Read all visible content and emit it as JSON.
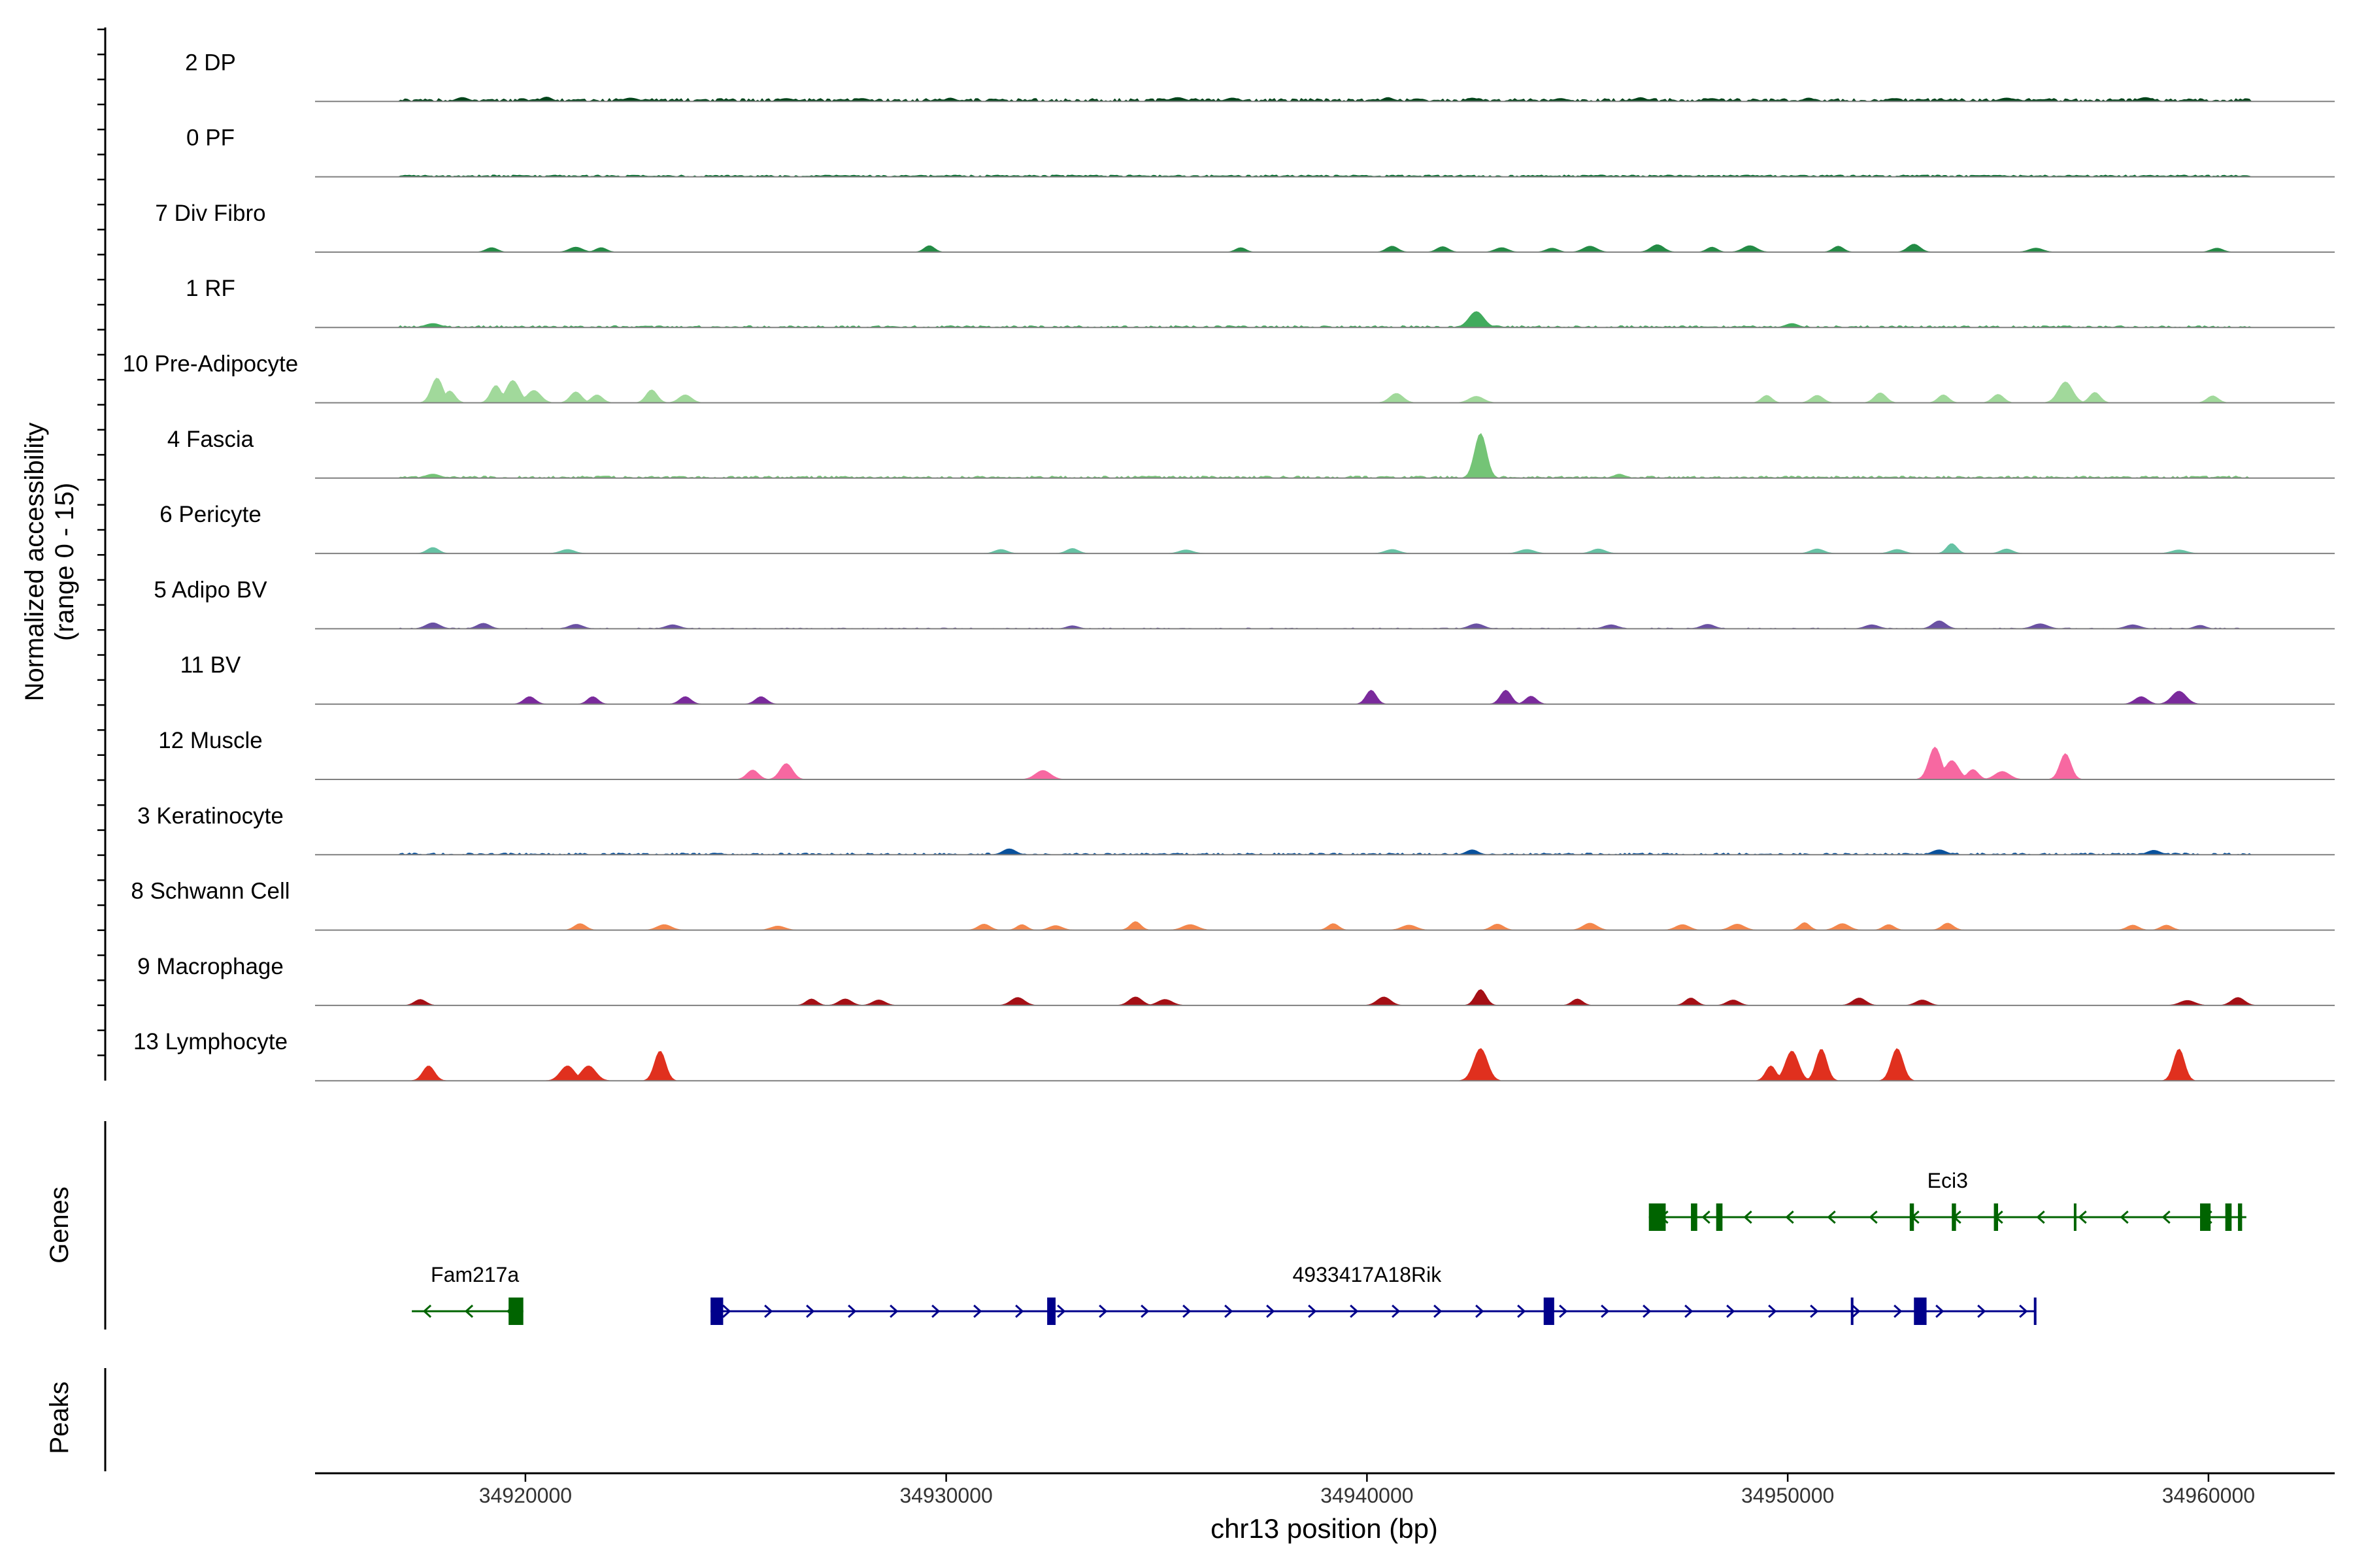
{
  "chart_data": {
    "type": "area",
    "title": "",
    "ylabel": "Normalized accessibility (range 0 - 15)",
    "ylabel_lines": [
      "Normalized accessibility",
      "(range 0 - 15)"
    ],
    "ylim": [
      0,
      15
    ],
    "xlabel": "chr13 position (bp)",
    "xlim": [
      34915000,
      34963000
    ],
    "xticks": [
      34920000,
      34930000,
      34940000,
      34950000,
      34960000
    ],
    "xtick_labels": [
      "34920000",
      "34930000",
      "34940000",
      "34950000",
      "34960000"
    ],
    "colors": {
      "axis": "#000000",
      "baseline": "#808080",
      "gene_minus": "#006400",
      "gene_plus": "#00008b"
    },
    "series": [
      {
        "name": "2 DP",
        "color": "#00441b",
        "bg": 0.5,
        "bgDensity": 0.75,
        "seed": 11,
        "peaks": [
          [
            34918500,
            0.8
          ],
          [
            34920500,
            0.9
          ],
          [
            34922500,
            0.7
          ],
          [
            34926200,
            0.6
          ],
          [
            34928000,
            0.6
          ],
          [
            34930100,
            0.7
          ],
          [
            34935500,
            0.8
          ],
          [
            34936800,
            0.7
          ],
          [
            34940500,
            0.8
          ],
          [
            34942500,
            0.7
          ],
          [
            34944600,
            0.6
          ],
          [
            34946500,
            0.8
          ],
          [
            34948200,
            0.6
          ],
          [
            34950500,
            0.7
          ],
          [
            34952500,
            0.6
          ],
          [
            34955200,
            0.7
          ],
          [
            34958500,
            0.8
          ]
        ]
      },
      {
        "name": "0 PF",
        "color": "#006d2c",
        "bg": 0.3,
        "bgDensity": 0.85,
        "seed": 23,
        "peaks": []
      },
      {
        "name": "7 Div Fibro",
        "color": "#238b45",
        "bg": 0,
        "bgDensity": 0,
        "seed": 37,
        "peaks": [
          [
            34919200,
            0.9
          ],
          [
            34921200,
            1.0
          ],
          [
            34921800,
            0.9
          ],
          [
            34929600,
            1.3
          ],
          [
            34937000,
            0.9
          ],
          [
            34940600,
            1.2
          ],
          [
            34941800,
            1.1
          ],
          [
            34943200,
            0.9
          ],
          [
            34944400,
            0.8
          ],
          [
            34945300,
            1.2
          ],
          [
            34946900,
            1.5
          ],
          [
            34948200,
            1.0
          ],
          [
            34949100,
            1.3
          ],
          [
            34951200,
            1.2
          ],
          [
            34953000,
            1.6
          ],
          [
            34955900,
            0.8
          ],
          [
            34960200,
            0.8
          ]
        ]
      },
      {
        "name": "1 RF",
        "color": "#41ab5d",
        "bg": 0.3,
        "bgDensity": 0.6,
        "seed": 41,
        "peaks": [
          [
            34917800,
            0.8
          ],
          [
            34942600,
            3.2
          ],
          [
            34950100,
            0.8
          ]
        ]
      },
      {
        "name": "10 Pre-Adipocyte",
        "color": "#a1d99b",
        "bg": 0,
        "bgDensity": 0,
        "seed": 53,
        "peaks": [
          [
            34917900,
            5.0
          ],
          [
            34918200,
            2.4
          ],
          [
            34919300,
            3.5
          ],
          [
            34919700,
            4.5
          ],
          [
            34920200,
            2.5
          ],
          [
            34921200,
            2.2
          ],
          [
            34921700,
            1.6
          ],
          [
            34923000,
            2.6
          ],
          [
            34923800,
            1.6
          ],
          [
            34940700,
            1.9
          ],
          [
            34942600,
            1.3
          ],
          [
            34949500,
            1.5
          ],
          [
            34950700,
            1.5
          ],
          [
            34952200,
            2.0
          ],
          [
            34953700,
            1.6
          ],
          [
            34955000,
            1.7
          ],
          [
            34956600,
            4.2
          ],
          [
            34957300,
            2.1
          ],
          [
            34960100,
            1.4
          ]
        ]
      },
      {
        "name": "4 Fascia",
        "color": "#74c476",
        "bg": 0.35,
        "bgDensity": 0.7,
        "seed": 67,
        "peaks": [
          [
            34942700,
            9.0
          ],
          [
            34917800,
            0.8
          ],
          [
            34946000,
            0.8
          ]
        ]
      },
      {
        "name": "6 Pericyte",
        "color": "#66c2a4",
        "bg": 0,
        "bgDensity": 0,
        "seed": 71,
        "peaks": [
          [
            34917800,
            1.2
          ],
          [
            34921000,
            0.8
          ],
          [
            34931300,
            0.8
          ],
          [
            34933000,
            1.0
          ],
          [
            34935700,
            0.7
          ],
          [
            34940600,
            0.8
          ],
          [
            34943800,
            0.8
          ],
          [
            34945500,
            0.9
          ],
          [
            34950700,
            0.9
          ],
          [
            34952600,
            0.8
          ],
          [
            34953900,
            2.0
          ],
          [
            34955200,
            0.9
          ],
          [
            34959300,
            0.7
          ]
        ]
      },
      {
        "name": "5 Adipo BV",
        "color": "#6a51a3",
        "bg": 0.15,
        "bgDensity": 0.35,
        "seed": 83,
        "peaks": [
          [
            34917800,
            1.2
          ],
          [
            34919000,
            1.1
          ],
          [
            34921200,
            0.9
          ],
          [
            34923500,
            0.8
          ],
          [
            34933000,
            0.6
          ],
          [
            34942600,
            1.0
          ],
          [
            34945800,
            0.8
          ],
          [
            34948100,
            0.9
          ],
          [
            34952000,
            0.8
          ],
          [
            34953600,
            1.6
          ],
          [
            34956000,
            1.0
          ],
          [
            34958200,
            0.8
          ],
          [
            34959800,
            0.7
          ]
        ]
      },
      {
        "name": "11 BV",
        "color": "#7a2a9c",
        "bg": 0,
        "bgDensity": 0,
        "seed": 97,
        "peaks": [
          [
            34920100,
            1.5
          ],
          [
            34921600,
            1.5
          ],
          [
            34923800,
            1.5
          ],
          [
            34925600,
            1.5
          ],
          [
            34940100,
            2.8
          ],
          [
            34943300,
            2.8
          ],
          [
            34943900,
            1.6
          ],
          [
            34958400,
            1.5
          ],
          [
            34959300,
            2.6
          ]
        ]
      },
      {
        "name": "12 Muscle",
        "color": "#f768a1",
        "bg": 0,
        "bgDensity": 0,
        "seed": 101,
        "peaks": [
          [
            34925400,
            1.9
          ],
          [
            34926200,
            3.2
          ],
          [
            34932300,
            1.8
          ],
          [
            34953500,
            6.5
          ],
          [
            34953900,
            3.8
          ],
          [
            34954400,
            2.0
          ],
          [
            34955100,
            1.6
          ],
          [
            34956600,
            5.2
          ]
        ]
      },
      {
        "name": "3 Keratinocyte",
        "color": "#08519c",
        "bg": 0.3,
        "bgDensity": 0.55,
        "seed": 113,
        "peaks": [
          [
            34931500,
            1.2
          ],
          [
            34942500,
            1.0
          ],
          [
            34953600,
            1.0
          ],
          [
            34958700,
            0.9
          ]
        ]
      },
      {
        "name": "8 Schwann Cell",
        "color": "#f4874c",
        "bg": 0,
        "bgDensity": 0,
        "seed": 127,
        "peaks": [
          [
            34921300,
            1.3
          ],
          [
            34923300,
            1.1
          ],
          [
            34926000,
            0.8
          ],
          [
            34930900,
            1.2
          ],
          [
            34931800,
            1.1
          ],
          [
            34932600,
            0.9
          ],
          [
            34934500,
            1.7
          ],
          [
            34935800,
            1.1
          ],
          [
            34939200,
            1.3
          ],
          [
            34941000,
            1.0
          ],
          [
            34943100,
            1.2
          ],
          [
            34945300,
            1.4
          ],
          [
            34947500,
            1.1
          ],
          [
            34948800,
            1.2
          ],
          [
            34950400,
            1.5
          ],
          [
            34951300,
            1.3
          ],
          [
            34952400,
            1.1
          ],
          [
            34953800,
            1.4
          ],
          [
            34958200,
            1.0
          ],
          [
            34959000,
            1.0
          ]
        ]
      },
      {
        "name": "9 Macrophage",
        "color": "#a50f15",
        "bg": 0,
        "bgDensity": 0,
        "seed": 131,
        "peaks": [
          [
            34917500,
            1.2
          ],
          [
            34926800,
            1.3
          ],
          [
            34927600,
            1.3
          ],
          [
            34928400,
            1.1
          ],
          [
            34931700,
            1.6
          ],
          [
            34934500,
            1.7
          ],
          [
            34935200,
            1.2
          ],
          [
            34940400,
            1.7
          ],
          [
            34942700,
            3.2
          ],
          [
            34945000,
            1.3
          ],
          [
            34947700,
            1.5
          ],
          [
            34948700,
            1.1
          ],
          [
            34951700,
            1.5
          ],
          [
            34953200,
            1.1
          ],
          [
            34959500,
            1.0
          ],
          [
            34960700,
            1.6
          ]
        ]
      },
      {
        "name": "13 Lymphocyte",
        "color": "#e0301e",
        "bg": 0,
        "bgDensity": 0,
        "seed": 149,
        "peaks": [
          [
            34917700,
            3.0
          ],
          [
            34921000,
            3.0
          ],
          [
            34921500,
            3.0
          ],
          [
            34923200,
            6.0
          ],
          [
            34942700,
            6.5
          ],
          [
            34949600,
            3.0
          ],
          [
            34950100,
            6.0
          ],
          [
            34950800,
            6.4
          ],
          [
            34952600,
            6.5
          ],
          [
            34959300,
            6.4
          ]
        ]
      }
    ],
    "genes": [
      {
        "name": "Eci3",
        "strand": "-",
        "row": 0,
        "start": 34946700,
        "end": 34960900,
        "exons": [
          [
            34946700,
            34947100
          ],
          [
            34947700,
            34947850
          ],
          [
            34948300,
            34948450
          ],
          [
            34952900,
            34953000
          ],
          [
            34953900,
            34954000
          ],
          [
            34954900,
            34955000
          ],
          [
            34956800,
            34956850
          ],
          [
            34959800,
            34960050
          ],
          [
            34960400,
            34960550
          ],
          [
            34960700,
            34960800
          ]
        ],
        "label_x": 34953800
      },
      {
        "name": "Fam217a",
        "strand": "-",
        "row": 1,
        "start": 34917300,
        "end": 34919950,
        "exons": [
          [
            34919600,
            34919950
          ]
        ],
        "label_x": 34918800
      },
      {
        "name": "4933417A18Rik",
        "strand": "+",
        "row": 1,
        "start": 34924400,
        "end": 34955900,
        "exons": [
          [
            34924400,
            34924700
          ],
          [
            34932400,
            34932600
          ],
          [
            34944200,
            34944450
          ],
          [
            34951500,
            34951550
          ],
          [
            34953000,
            34953300
          ],
          [
            34955850,
            34955900
          ]
        ],
        "label_x": 34940000
      }
    ],
    "panels": [
      "Genes",
      "Peaks"
    ],
    "peaks_track": []
  }
}
